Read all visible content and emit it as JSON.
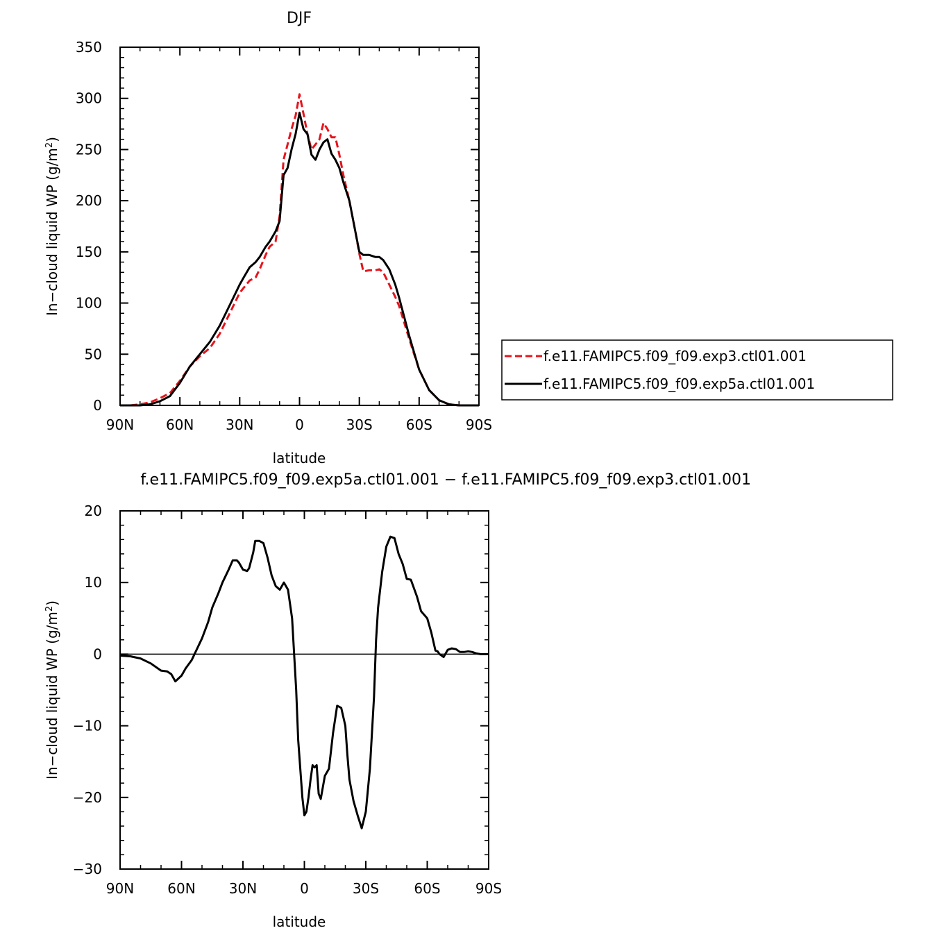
{
  "chart_data": [
    {
      "type": "line",
      "title": "DJF",
      "xlabel": "latitude",
      "ylabel": "In−cloud liquid WP (g/m²)",
      "ylabel_prefix": "In−cloud liquid WP (g/m",
      "ylabel_sup": "2",
      "ylabel_suffix": ")",
      "xlim": [
        90,
        -90
      ],
      "ylim": [
        0,
        350
      ],
      "x_tick_values": [
        90,
        60,
        30,
        0,
        -30,
        -60,
        -90
      ],
      "x_tick_labels": [
        "90N",
        "60N",
        "30N",
        "0",
        "30S",
        "60S",
        "90S"
      ],
      "y_tick_values": [
        0,
        50,
        100,
        150,
        200,
        250,
        300,
        350
      ],
      "y_tick_labels": [
        "0",
        "50",
        "100",
        "150",
        "200",
        "250",
        "300",
        "350"
      ],
      "grid": false,
      "legend_position": "right",
      "series": [
        {
          "name": "f.e11.FAMIPC5.f09_f09.exp3.ctl01.001",
          "color": "#e8131b",
          "dash": "dashed",
          "x": [
            90,
            85,
            80,
            75,
            70,
            65,
            60,
            55,
            50,
            45,
            40,
            35,
            30,
            25,
            22,
            20,
            17,
            15,
            12,
            10,
            8,
            6,
            4,
            2,
            0,
            -2,
            -4,
            -6,
            -8,
            -10,
            -12,
            -14,
            -16,
            -18,
            -20,
            -22,
            -25,
            -28,
            -30,
            -32,
            -35,
            -38,
            -40,
            -42,
            -45,
            -48,
            -50,
            -55,
            -60,
            -65,
            -70,
            -75,
            -80,
            -85,
            -90
          ],
          "values": [
            0,
            0,
            1,
            3,
            7,
            12,
            24,
            38,
            48,
            56,
            70,
            90,
            110,
            122,
            125,
            133,
            147,
            155,
            160,
            185,
            240,
            255,
            270,
            283,
            304,
            285,
            265,
            250,
            255,
            260,
            276,
            270,
            262,
            262,
            245,
            225,
            200,
            170,
            148,
            131,
            132,
            132,
            133,
            130,
            118,
            106,
            97,
            65,
            35,
            15,
            5,
            1,
            0,
            0,
            0
          ]
        },
        {
          "name": "f.e11.FAMIPC5.f09_f09.exp5a.ctl01.001",
          "color": "#000000",
          "dash": "solid",
          "x": [
            90,
            85,
            80,
            75,
            70,
            65,
            60,
            55,
            50,
            45,
            40,
            35,
            30,
            28,
            25,
            22,
            20,
            17,
            15,
            12,
            10,
            8,
            6,
            4,
            2,
            0,
            -2,
            -4,
            -6,
            -8,
            -10,
            -12,
            -14,
            -16,
            -18,
            -20,
            -22,
            -25,
            -28,
            -30,
            -32,
            -35,
            -38,
            -40,
            -42,
            -45,
            -48,
            -50,
            -55,
            -60,
            -65,
            -70,
            -75,
            -80,
            -85,
            -90
          ],
          "values": [
            0,
            0,
            0,
            1,
            4,
            9,
            22,
            38,
            50,
            62,
            78,
            98,
            118,
            125,
            135,
            140,
            145,
            155,
            160,
            170,
            180,
            225,
            232,
            250,
            265,
            286,
            270,
            265,
            245,
            240,
            250,
            257,
            260,
            246,
            240,
            232,
            218,
            200,
            170,
            150,
            147,
            147,
            145,
            145,
            142,
            133,
            118,
            105,
            68,
            35,
            15,
            5,
            1,
            0,
            0,
            0
          ]
        }
      ]
    },
    {
      "type": "line",
      "title": "f.e11.FAMIPC5.f09_f09.exp5a.ctl01.001 − f.e11.FAMIPC5.f09_f09.exp3.ctl01.001",
      "xlabel": "latitude",
      "ylabel": "In−cloud liquid WP (g/m²)",
      "ylabel_prefix": "In−cloud liquid WP (g/m",
      "ylabel_sup": "2",
      "ylabel_suffix": ")",
      "xlim": [
        90,
        -90
      ],
      "ylim": [
        -30,
        20
      ],
      "x_tick_values": [
        90,
        60,
        30,
        0,
        -30,
        -60,
        -90
      ],
      "x_tick_labels": [
        "90N",
        "60N",
        "30N",
        "0",
        "30S",
        "60S",
        "90S"
      ],
      "y_tick_values": [
        -30,
        -20,
        -10,
        0,
        10,
        20
      ],
      "y_tick_labels": [
        "−30",
        "−20",
        "−10",
        "0",
        "10",
        "20"
      ],
      "grid": false,
      "series": [
        {
          "color": "#000000",
          "dash": "solid",
          "x": [
            90,
            85,
            80,
            75,
            70,
            67,
            65,
            63,
            60,
            58,
            55,
            52,
            50,
            47,
            45,
            42,
            40,
            37,
            35,
            33,
            32,
            30,
            28,
            27,
            25,
            24,
            22,
            20,
            18,
            16,
            14,
            12,
            10,
            8,
            6,
            4,
            3,
            2,
            1,
            0,
            -1,
            -2,
            -3,
            -4,
            -5,
            -6,
            -7,
            -8,
            -10,
            -12,
            -14,
            -16,
            -18,
            -20,
            -21,
            -22,
            -24,
            -26,
            -28,
            -30,
            -32,
            -34,
            -35,
            -36,
            -38,
            -40,
            -42,
            -44,
            -46,
            -48,
            -50,
            -52,
            -55,
            -57,
            -60,
            -62,
            -64,
            -65,
            -66,
            -68,
            -70,
            -72,
            -74,
            -76,
            -78,
            -80,
            -82,
            -84,
            -86,
            -88,
            -90
          ],
          "values": [
            -0.2,
            -0.3,
            -0.6,
            -1.3,
            -2.3,
            -2.4,
            -2.8,
            -3.8,
            -3,
            -2,
            -0.8,
            1,
            2.2,
            4.5,
            6.5,
            8.5,
            10,
            11.8,
            13.1,
            13.1,
            12.8,
            11.8,
            11.6,
            12,
            14.2,
            15.8,
            15.8,
            15.5,
            13.5,
            11,
            9.5,
            9,
            10,
            9,
            5,
            -5,
            -12,
            -16,
            -20,
            -22.5,
            -22,
            -20,
            -17.5,
            -15.5,
            -15.8,
            -15.5,
            -19.5,
            -20.2,
            -17,
            -16,
            -11,
            -7.2,
            -7.5,
            -10,
            -14,
            -17.5,
            -20.5,
            -22.5,
            -24.3,
            -22,
            -16,
            -6,
            2,
            6.5,
            11.5,
            15,
            16.4,
            16.2,
            14,
            12.6,
            10.5,
            10.4,
            8,
            6,
            5,
            3,
            0.5,
            0.4,
            0,
            -0.4,
            0.6,
            0.8,
            0.7,
            0.3,
            0.3,
            0.4,
            0.3,
            0.1,
            0,
            0,
            0
          ]
        }
      ]
    }
  ]
}
